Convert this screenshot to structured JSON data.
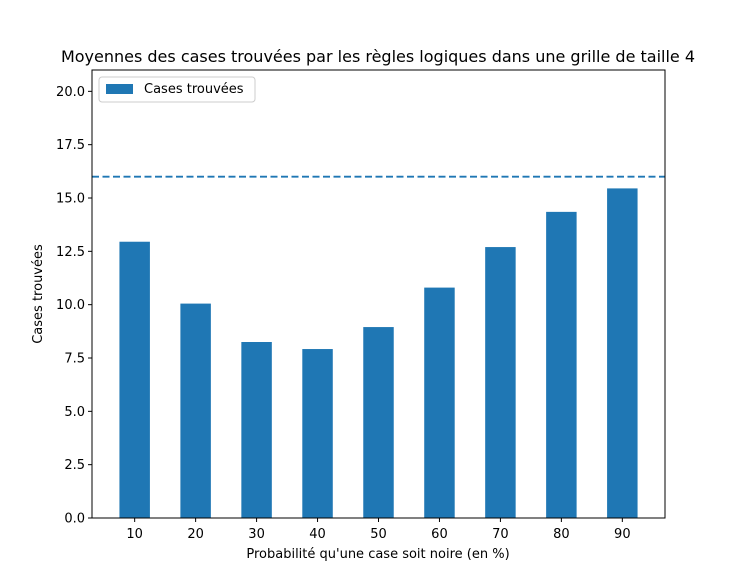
{
  "chart_data": {
    "type": "bar",
    "title": "Moyennes des cases trouvées par les règles logiques dans une grille de taille 4",
    "xlabel": "Probabilité qu'une case soit noire (en %)",
    "ylabel": "Cases trouvées",
    "categories": [
      "10",
      "20",
      "30",
      "40",
      "50",
      "60",
      "70",
      "80",
      "90"
    ],
    "series": [
      {
        "name": "Cases trouvées",
        "values": [
          12.95,
          10.05,
          8.25,
          7.92,
          8.95,
          10.8,
          12.7,
          14.35,
          15.45
        ],
        "color": "#1f77b4"
      }
    ],
    "reference_line": {
      "y": 16,
      "style": "dashed",
      "color": "#1f77b4"
    },
    "ylim": [
      0,
      21
    ],
    "yticks": [
      0.0,
      2.5,
      5.0,
      7.5,
      10.0,
      12.5,
      15.0,
      17.5,
      20.0
    ],
    "ytick_labels": [
      "0.0",
      "2.5",
      "5.0",
      "7.5",
      "10.0",
      "12.5",
      "15.0",
      "17.5",
      "20.0"
    ],
    "legend": {
      "position": "top-left"
    },
    "grid": false
  }
}
